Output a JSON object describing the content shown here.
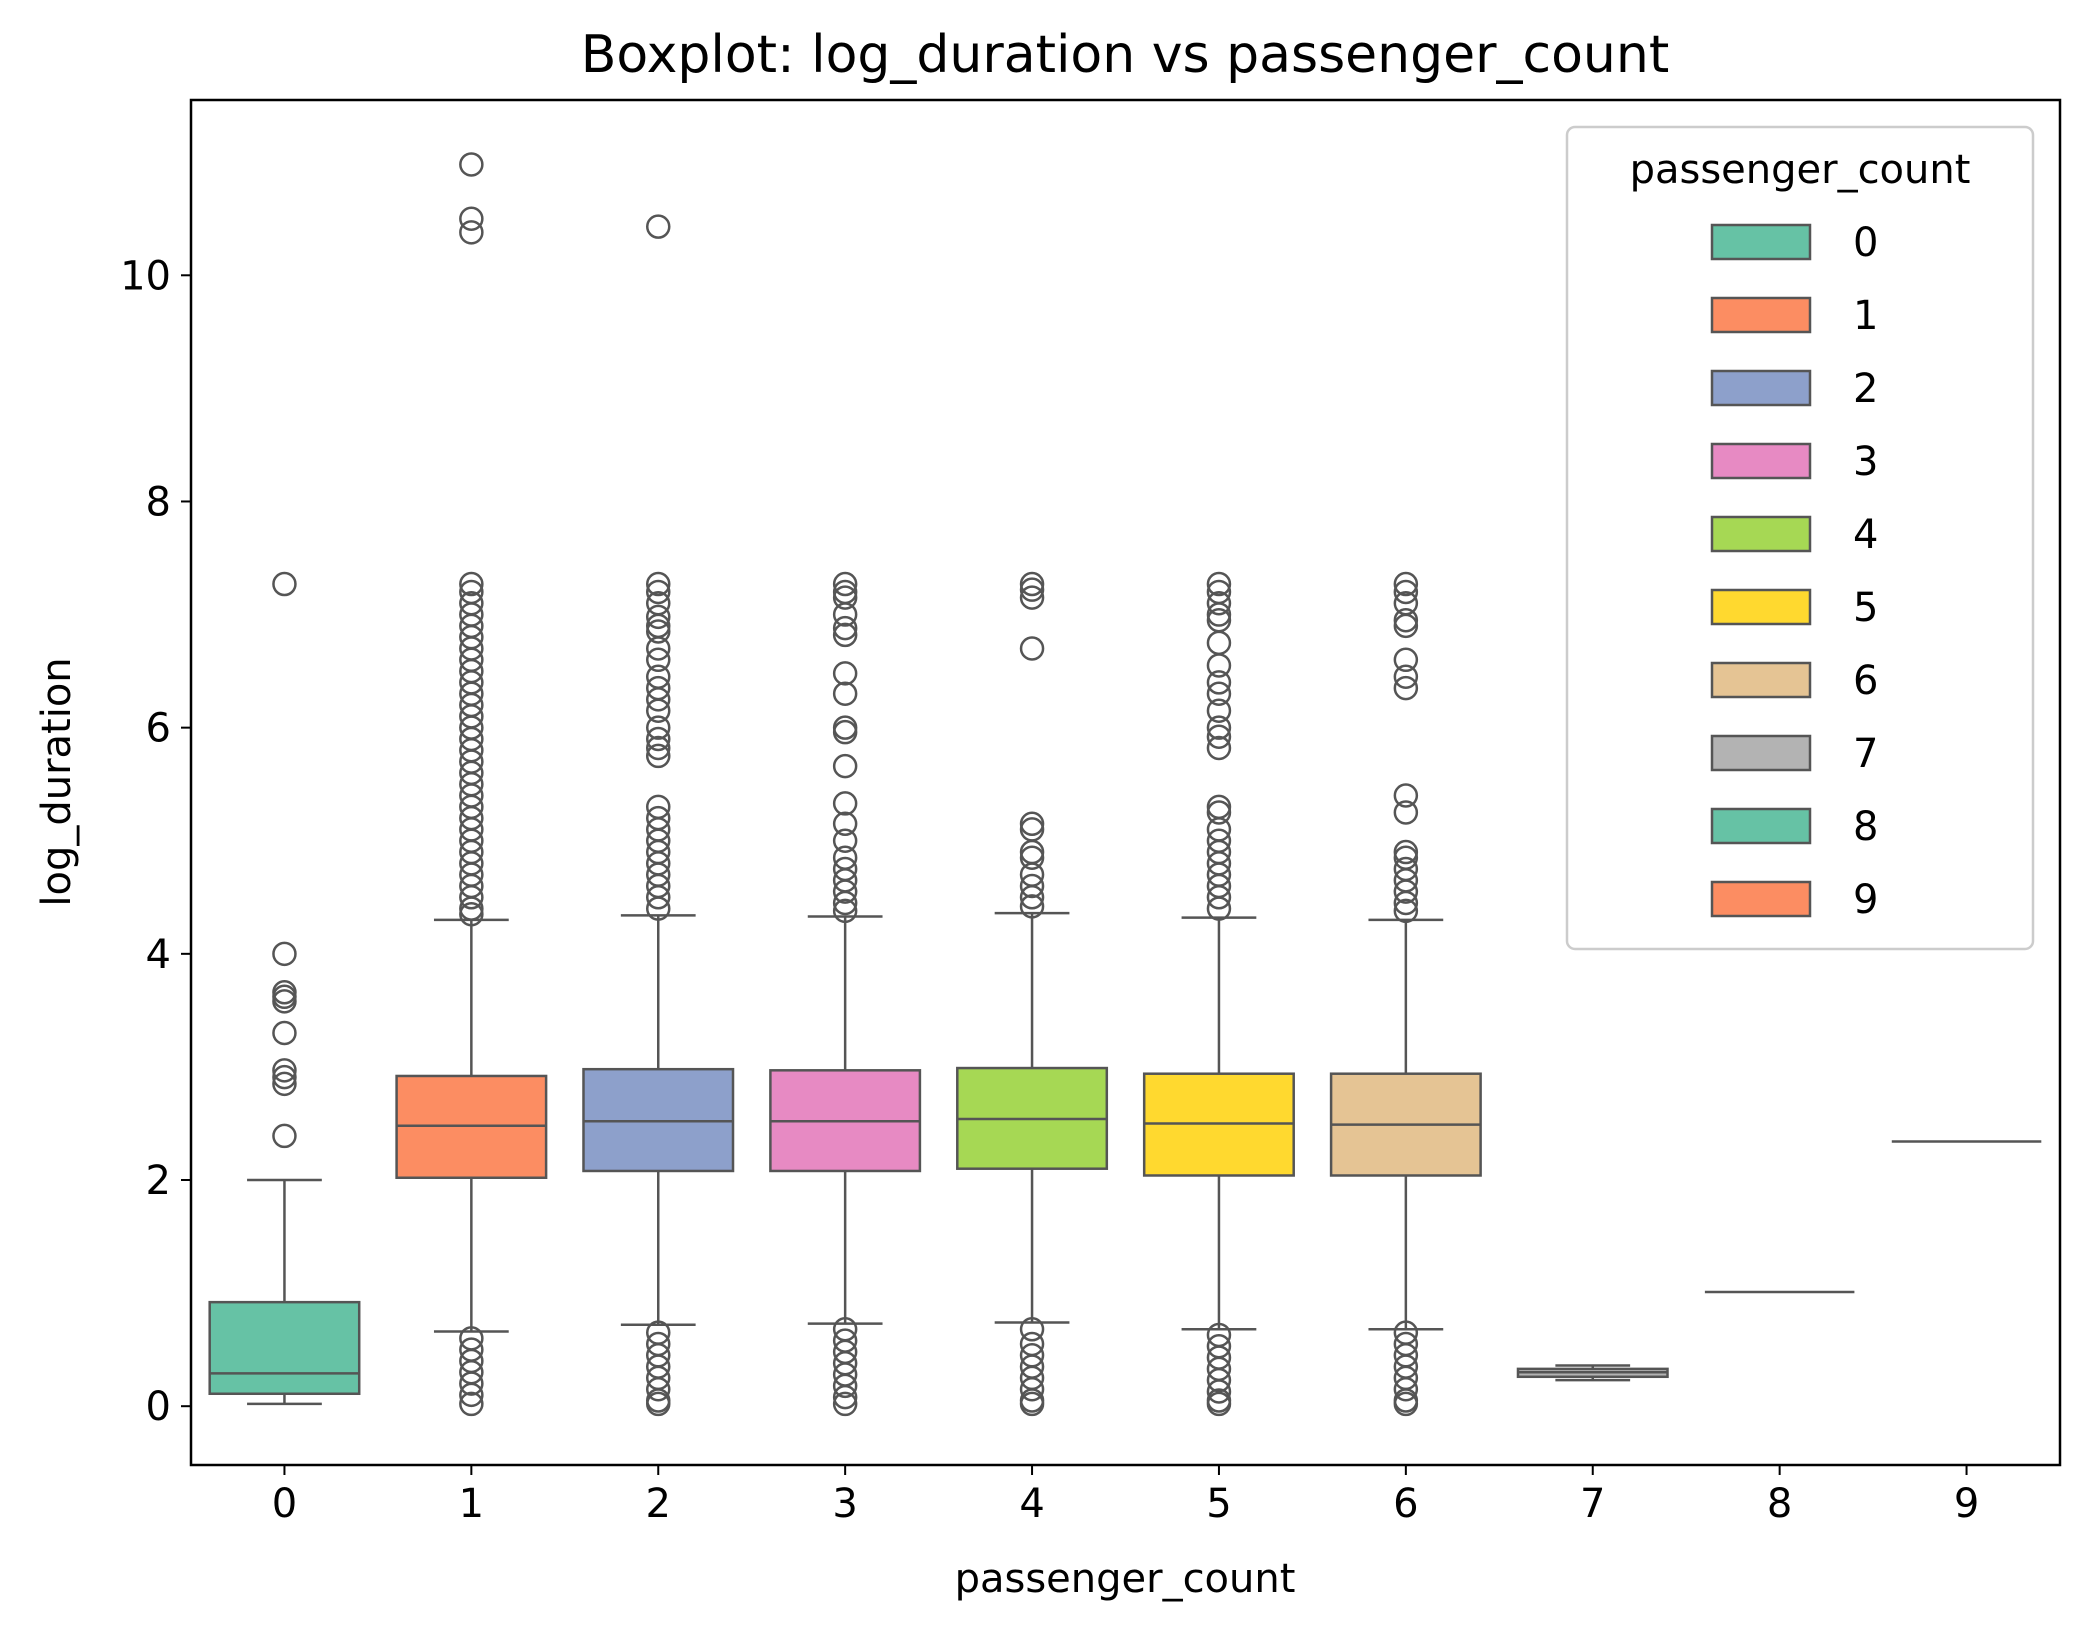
{
  "chart_data": {
    "type": "box",
    "title": "Boxplot: log_duration vs passenger_count",
    "xlabel": "passenger_count",
    "ylabel": "log_duration",
    "categories": [
      "0",
      "1",
      "2",
      "3",
      "4",
      "5",
      "6",
      "7",
      "8",
      "9"
    ],
    "ylim": [
      -0.52,
      11.55
    ],
    "yticks": [
      0,
      2,
      4,
      6,
      8,
      10
    ],
    "grid": false,
    "legend": {
      "title": "passenger_count",
      "placement": "top-right"
    },
    "colors": [
      "#66c2a5",
      "#fc8d62",
      "#8da0cb",
      "#e78ac3",
      "#a6d854",
      "#ffd92f",
      "#e5c494",
      "#b3b3b3",
      "#66c2a5",
      "#fc8d62"
    ],
    "edge_color": "#555555",
    "series": [
      {
        "category": "0",
        "whisker_low": 0.02,
        "q1": 0.11,
        "median": 0.29,
        "q3": 0.92,
        "whisker_high": 2.0,
        "outliers": [
          7.27,
          4.0,
          3.66,
          3.62,
          3.58,
          3.3,
          2.97,
          2.91,
          2.85,
          2.39
        ]
      },
      {
        "category": "1",
        "whisker_low": 0.66,
        "q1": 2.02,
        "median": 2.48,
        "q3": 2.92,
        "whisker_high": 4.3,
        "outliers": [
          10.98,
          10.5,
          10.38,
          7.27,
          7.2,
          7.1,
          7.0,
          6.9,
          6.8,
          6.7,
          6.6,
          6.5,
          6.4,
          6.3,
          6.2,
          6.1,
          6.0,
          5.9,
          5.8,
          5.7,
          5.6,
          5.5,
          5.4,
          5.3,
          5.2,
          5.1,
          5.0,
          4.9,
          4.8,
          4.7,
          4.6,
          4.5,
          4.4,
          4.35,
          0.6,
          0.5,
          0.4,
          0.3,
          0.2,
          0.1,
          0.02
        ]
      },
      {
        "category": "2",
        "whisker_low": 0.72,
        "q1": 2.08,
        "median": 2.52,
        "q3": 2.98,
        "whisker_high": 4.34,
        "outliers": [
          10.43,
          7.27,
          7.2,
          7.1,
          6.98,
          6.9,
          6.85,
          6.7,
          6.6,
          6.45,
          6.35,
          6.25,
          6.15,
          6.0,
          5.9,
          5.82,
          5.75,
          5.3,
          5.2,
          5.1,
          5.0,
          4.9,
          4.8,
          4.7,
          4.6,
          4.5,
          4.4,
          0.65,
          0.55,
          0.45,
          0.35,
          0.25,
          0.15,
          0.05,
          0.02
        ]
      },
      {
        "category": "3",
        "whisker_low": 0.73,
        "q1": 2.08,
        "median": 2.52,
        "q3": 2.97,
        "whisker_high": 4.33,
        "outliers": [
          7.27,
          7.2,
          7.15,
          7.0,
          6.88,
          6.82,
          6.48,
          6.3,
          6.0,
          5.96,
          5.66,
          5.33,
          5.15,
          5.0,
          4.85,
          4.75,
          4.65,
          4.55,
          4.45,
          4.38,
          0.68,
          0.58,
          0.48,
          0.38,
          0.28,
          0.18,
          0.08,
          0.02
        ]
      },
      {
        "category": "4",
        "whisker_low": 0.74,
        "q1": 2.1,
        "median": 2.54,
        "q3": 2.99,
        "whisker_high": 4.36,
        "outliers": [
          7.27,
          7.22,
          7.15,
          6.7,
          5.15,
          5.1,
          4.9,
          4.85,
          4.7,
          4.6,
          4.5,
          4.42,
          0.68,
          0.55,
          0.45,
          0.35,
          0.25,
          0.15,
          0.05,
          0.02
        ]
      },
      {
        "category": "5",
        "whisker_low": 0.68,
        "q1": 2.04,
        "median": 2.5,
        "q3": 2.94,
        "whisker_high": 4.32,
        "outliers": [
          7.27,
          7.2,
          7.1,
          7.0,
          6.95,
          6.75,
          6.55,
          6.4,
          6.3,
          6.15,
          6.0,
          5.92,
          5.82,
          5.3,
          5.25,
          5.1,
          5.0,
          4.9,
          4.8,
          4.7,
          4.6,
          4.5,
          4.4,
          0.63,
          0.53,
          0.43,
          0.33,
          0.23,
          0.13,
          0.05,
          0.02
        ]
      },
      {
        "category": "6",
        "whisker_low": 0.68,
        "q1": 2.04,
        "median": 2.49,
        "q3": 2.94,
        "whisker_high": 4.3,
        "outliers": [
          7.27,
          7.2,
          7.1,
          6.95,
          6.9,
          6.6,
          6.45,
          6.35,
          5.4,
          5.25,
          4.9,
          4.85,
          4.75,
          4.65,
          4.55,
          4.45,
          4.38,
          0.65,
          0.55,
          0.45,
          0.35,
          0.25,
          0.15,
          0.05,
          0.02
        ]
      },
      {
        "category": "7",
        "whisker_low": 0.23,
        "q1": 0.26,
        "median": 0.3,
        "q3": 0.33,
        "whisker_high": 0.36,
        "outliers": []
      },
      {
        "category": "8",
        "whisker_low": 1.01,
        "q1": 1.01,
        "median": 1.01,
        "q3": 1.01,
        "whisker_high": 1.01,
        "outliers": []
      },
      {
        "category": "9",
        "whisker_low": 2.34,
        "q1": 2.34,
        "median": 2.34,
        "q3": 2.34,
        "whisker_high": 2.34,
        "outliers": []
      }
    ]
  }
}
